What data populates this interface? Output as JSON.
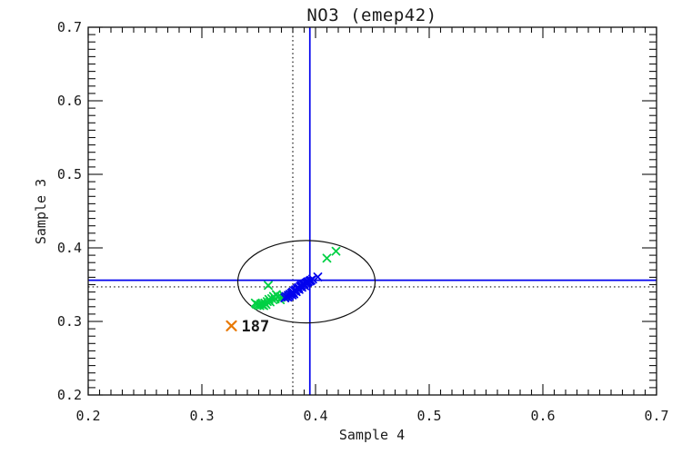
{
  "chart_data": {
    "type": "scatter",
    "title": "NO3 (emep42)",
    "xlabel": "Sample 4",
    "ylabel": "Sample 3",
    "xlim": [
      0.2,
      0.7
    ],
    "ylim": [
      0.2,
      0.7
    ],
    "xticks": [
      0.2,
      0.3,
      0.4,
      0.5,
      0.6,
      0.7
    ],
    "yticks": [
      0.2,
      0.3,
      0.4,
      0.5,
      0.6,
      0.7
    ],
    "minor_tick_step": 0.01,
    "tick_label_decimals": 1,
    "grid": false,
    "legend": "none",
    "background": "#ffffff",
    "series": [
      {
        "name": "green",
        "color": "#00d044",
        "marker": "x",
        "points": [
          [
            0.347,
            0.325
          ],
          [
            0.348,
            0.3235
          ],
          [
            0.3495,
            0.3225
          ],
          [
            0.351,
            0.3215
          ],
          [
            0.352,
            0.324
          ],
          [
            0.353,
            0.3225
          ],
          [
            0.3545,
            0.3215
          ],
          [
            0.3555,
            0.325
          ],
          [
            0.3565,
            0.323
          ],
          [
            0.3575,
            0.327
          ],
          [
            0.359,
            0.33
          ],
          [
            0.36,
            0.3265
          ],
          [
            0.3615,
            0.331
          ],
          [
            0.363,
            0.334
          ],
          [
            0.3645,
            0.3305
          ],
          [
            0.3655,
            0.3365
          ],
          [
            0.367,
            0.333
          ],
          [
            0.369,
            0.3295
          ],
          [
            0.37,
            0.333
          ],
          [
            0.3715,
            0.336
          ],
          [
            0.373,
            0.3335
          ],
          [
            0.3584,
            0.349
          ],
          [
            0.41,
            0.386
          ],
          [
            0.418,
            0.3955
          ]
        ]
      },
      {
        "name": "blue",
        "color": "#0202ee",
        "marker": "x",
        "points": [
          [
            0.373,
            0.332
          ],
          [
            0.374,
            0.334
          ],
          [
            0.3755,
            0.333
          ],
          [
            0.376,
            0.3355
          ],
          [
            0.377,
            0.3345
          ],
          [
            0.3775,
            0.337
          ],
          [
            0.379,
            0.3385
          ],
          [
            0.3795,
            0.336
          ],
          [
            0.38,
            0.34
          ],
          [
            0.381,
            0.3375
          ],
          [
            0.3815,
            0.3415
          ],
          [
            0.3825,
            0.343
          ],
          [
            0.383,
            0.3405
          ],
          [
            0.384,
            0.3445
          ],
          [
            0.385,
            0.346
          ],
          [
            0.3855,
            0.3435
          ],
          [
            0.3865,
            0.3475
          ],
          [
            0.3875,
            0.349
          ],
          [
            0.388,
            0.3465
          ],
          [
            0.389,
            0.35
          ],
          [
            0.39,
            0.351
          ],
          [
            0.3905,
            0.3485
          ],
          [
            0.3915,
            0.352
          ],
          [
            0.3925,
            0.353
          ],
          [
            0.3935,
            0.354
          ],
          [
            0.395,
            0.355
          ],
          [
            0.396,
            0.356
          ],
          [
            0.3975,
            0.3575
          ],
          [
            0.402,
            0.3605
          ]
        ]
      },
      {
        "name": "outlier",
        "color": "#e87800",
        "marker": "x",
        "label": "187",
        "points": [
          [
            0.326,
            0.294
          ]
        ]
      }
    ],
    "reference_lines": {
      "solid": {
        "color": "#0202ee",
        "x": 0.395,
        "y": 0.356
      },
      "dotted": {
        "color": "#111111",
        "x": 0.38,
        "y": 0.347
      }
    },
    "ellipse": {
      "cx": 0.392,
      "cy": 0.354,
      "rx": 0.0604,
      "ry": 0.056,
      "color": "#111111"
    }
  }
}
